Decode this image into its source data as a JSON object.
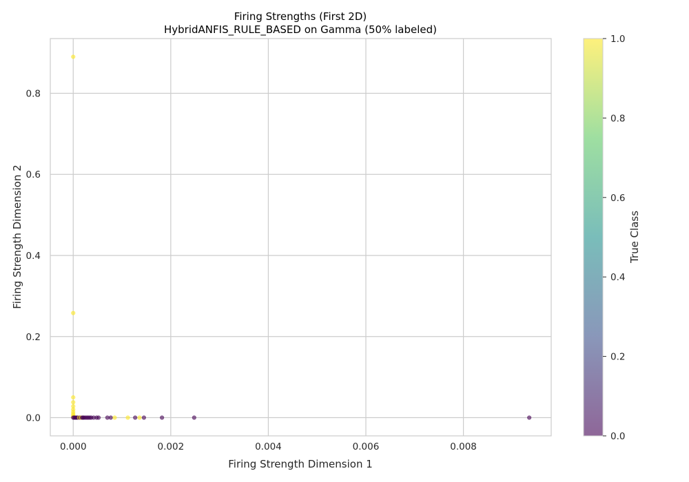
{
  "chart_data": {
    "type": "scatter",
    "title": "Firing Strengths (First 2D)",
    "subtitle": "HybridANFIS_RULE_BASED on Gamma (50% labeled)",
    "xlabel": "Firing Strength Dimension 1",
    "ylabel": "Firing Strength Dimension 2",
    "xlim": [
      -0.00047,
      0.0098
    ],
    "ylim": [
      -0.045,
      0.935
    ],
    "xticks": [
      "0.000",
      "0.002",
      "0.004",
      "0.006",
      "0.008"
    ],
    "xtick_values": [
      0,
      0.002,
      0.004,
      0.006,
      0.008
    ],
    "yticks": [
      "0.0",
      "0.2",
      "0.4",
      "0.6",
      "0.8"
    ],
    "ytick_values": [
      0,
      0.2,
      0.4,
      0.6,
      0.8
    ],
    "grid": true,
    "colorbar": {
      "label": "True Class",
      "ticks": [
        "0.0",
        "0.2",
        "0.4",
        "0.6",
        "0.8",
        "1.0"
      ],
      "tick_values": [
        0,
        0.2,
        0.4,
        0.6,
        0.8,
        1.0
      ],
      "range": [
        0,
        1
      ],
      "colormap": "viridis",
      "colors": [
        "#440154",
        "#3b528b",
        "#21918c",
        "#5ec962",
        "#fde725"
      ]
    },
    "point_alpha": 0.6,
    "points": [
      {
        "x": 0.0,
        "y": 0.89,
        "c": 1
      },
      {
        "x": 0.0,
        "y": 0.258,
        "c": 1
      },
      {
        "x": 0.0,
        "y": 0.05,
        "c": 1
      },
      {
        "x": 0.0,
        "y": 0.038,
        "c": 1
      },
      {
        "x": 0.0,
        "y": 0.028,
        "c": 1
      },
      {
        "x": 0.0,
        "y": 0.02,
        "c": 1
      },
      {
        "x": 0.0,
        "y": 0.014,
        "c": 1
      },
      {
        "x": 0.0,
        "y": 0.009,
        "c": 1
      },
      {
        "x": 0.0,
        "y": 0.005,
        "c": 1
      },
      {
        "x": 0.0,
        "y": 0.002,
        "c": 1
      },
      {
        "x": 0.0,
        "y": 0.0,
        "c": 0
      },
      {
        "x": 2e-05,
        "y": 0.0,
        "c": 0
      },
      {
        "x": 4e-05,
        "y": 0.0,
        "c": 0
      },
      {
        "x": 6e-05,
        "y": 0.0,
        "c": 0
      },
      {
        "x": 8e-05,
        "y": 0.0,
        "c": 0
      },
      {
        "x": 0.0001,
        "y": 0.0,
        "c": 0
      },
      {
        "x": 0.00012,
        "y": 0.0,
        "c": 1
      },
      {
        "x": 0.00014,
        "y": 0.0,
        "c": 0
      },
      {
        "x": 0.00016,
        "y": 0.0,
        "c": 1
      },
      {
        "x": 0.00018,
        "y": 0.0,
        "c": 0
      },
      {
        "x": 0.0002,
        "y": 0.0,
        "c": 0
      },
      {
        "x": 0.00022,
        "y": 0.0,
        "c": 0
      },
      {
        "x": 0.00025,
        "y": 0.0,
        "c": 0
      },
      {
        "x": 0.00028,
        "y": 0.0,
        "c": 0
      },
      {
        "x": 0.00031,
        "y": 0.0,
        "c": 0
      },
      {
        "x": 0.00034,
        "y": 0.0,
        "c": 0
      },
      {
        "x": 0.00037,
        "y": 0.0,
        "c": 0
      },
      {
        "x": 0.00042,
        "y": 0.0,
        "c": 0
      },
      {
        "x": 0.00048,
        "y": 0.0,
        "c": 0
      },
      {
        "x": 0.00052,
        "y": 0.0,
        "c": 0
      },
      {
        "x": 0.0007,
        "y": 0.0,
        "c": 0
      },
      {
        "x": 0.00077,
        "y": 0.0,
        "c": 0
      },
      {
        "x": 0.00085,
        "y": 0.0,
        "c": 1
      },
      {
        "x": 0.00112,
        "y": 0.0,
        "c": 1
      },
      {
        "x": 0.00127,
        "y": 0.0,
        "c": 0
      },
      {
        "x": 0.00136,
        "y": 0.0,
        "c": 1
      },
      {
        "x": 0.00145,
        "y": 0.0,
        "c": 0
      },
      {
        "x": 0.00182,
        "y": 0.0,
        "c": 0
      },
      {
        "x": 0.00248,
        "y": 0.0,
        "c": 0
      },
      {
        "x": 0.00935,
        "y": 0.0,
        "c": 0
      }
    ]
  }
}
